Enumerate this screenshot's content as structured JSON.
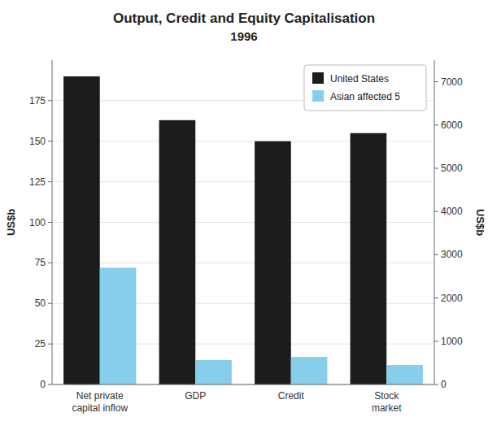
{
  "chart_data": {
    "type": "bar",
    "title": "Output, Credit and Equity Capitalisation",
    "subtitle": "1996",
    "categories": [
      "Net private\ncapital inflow",
      "GDP",
      "Credit",
      "Stock\nmarket"
    ],
    "series": [
      {
        "name": "United States",
        "color": "#1c1c1c",
        "values": [
          190,
          163,
          150,
          155
        ]
      },
      {
        "name": "Asian affected 5",
        "color": "#87ceeb",
        "values": [
          72,
          15,
          17,
          12
        ]
      }
    ],
    "ylabel": "US$b",
    "y2label": "US$b",
    "ylim": [
      0,
      200
    ],
    "yticks": [
      0,
      25,
      50,
      75,
      100,
      125,
      150,
      175
    ],
    "y2lim": [
      0,
      7500
    ],
    "y2ticks": [
      0,
      1000,
      2000,
      3000,
      4000,
      5000,
      6000,
      7000
    ],
    "grid": true,
    "legend": "upper right"
  }
}
